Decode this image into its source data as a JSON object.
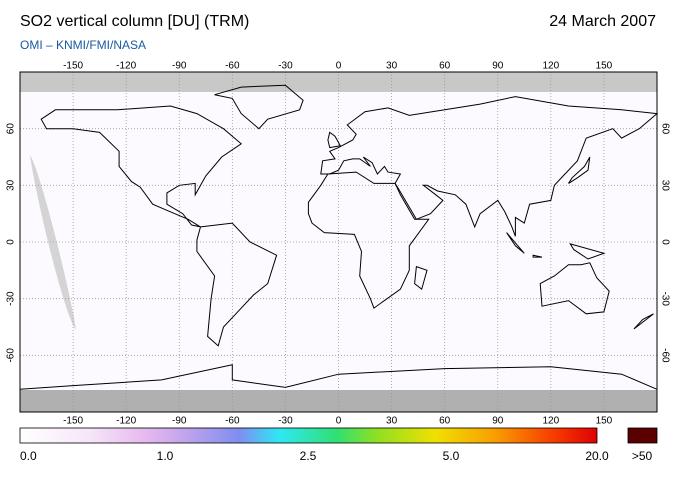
{
  "header": {
    "title": "SO2 vertical column [DU] (TRM)",
    "date": "24 March 2007",
    "source": "OMI  –  KNMI/FMI/NASA"
  },
  "map": {
    "lon_ticks": [
      -150,
      -120,
      -90,
      -60,
      -30,
      0,
      30,
      60,
      90,
      120,
      150
    ],
    "lat_ticks": [
      60,
      30,
      0,
      -30,
      -60
    ]
  },
  "colorbar": {
    "labels": [
      "0.0",
      "1.0",
      "2.5",
      "5.0",
      "20.0",
      ">50"
    ]
  }
}
